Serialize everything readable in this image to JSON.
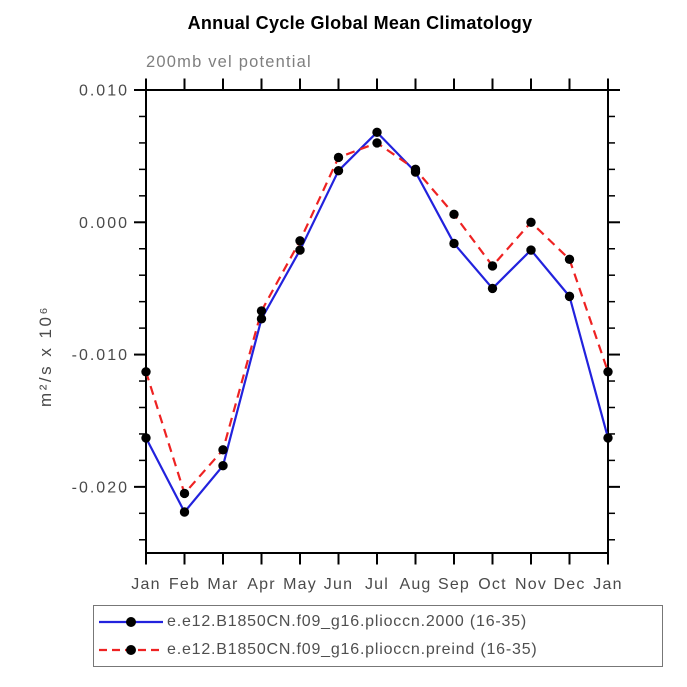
{
  "colors": {
    "series_2000": "#2222dd",
    "series_preind": "#ee2222",
    "marker": "#000000",
    "frame": "#000000",
    "tick_text": "#4a4a4a",
    "subtitle_text": "#7f7f7f"
  },
  "chart_data": {
    "type": "line",
    "title": "Annual Cycle Global Mean Climatology",
    "subtitle": "200mb vel potential",
    "ylabel": "m²/s x 10⁶",
    "xlabel": "",
    "categories": [
      "Jan",
      "Feb",
      "Mar",
      "Apr",
      "May",
      "Jun",
      "Jul",
      "Aug",
      "Sep",
      "Oct",
      "Nov",
      "Dec",
      "Jan"
    ],
    "ylim": [
      -0.025,
      0.01
    ],
    "ytick_major": [
      0.01,
      0.0,
      -0.01,
      -0.02
    ],
    "ytick_labels": [
      "0.010",
      "0.000",
      "-0.010",
      "-0.020"
    ],
    "ytick_minor_step": 0.002,
    "grid": false,
    "legend_position": "bottom",
    "series": [
      {
        "name": "e.e12.B1850CN.f09_g16.plioccn.2000 (16-35)",
        "color": "#2222dd",
        "style": "solid",
        "marker": "circle",
        "values": [
          -0.0163,
          -0.0219,
          -0.0184,
          -0.0073,
          -0.0021,
          0.0039,
          0.0068,
          0.0038,
          -0.0016,
          -0.005,
          -0.0021,
          -0.0056,
          -0.0163
        ]
      },
      {
        "name": "e.e12.B1850CN.f09_g16.plioccn.preind (16-35)",
        "color": "#ee2222",
        "style": "dashed",
        "marker": "circle",
        "values": [
          -0.0113,
          -0.0205,
          -0.0172,
          -0.0067,
          -0.0014,
          0.0049,
          0.006,
          0.004,
          0.0006,
          -0.0033,
          0.0,
          -0.0028,
          -0.0113
        ]
      }
    ]
  }
}
